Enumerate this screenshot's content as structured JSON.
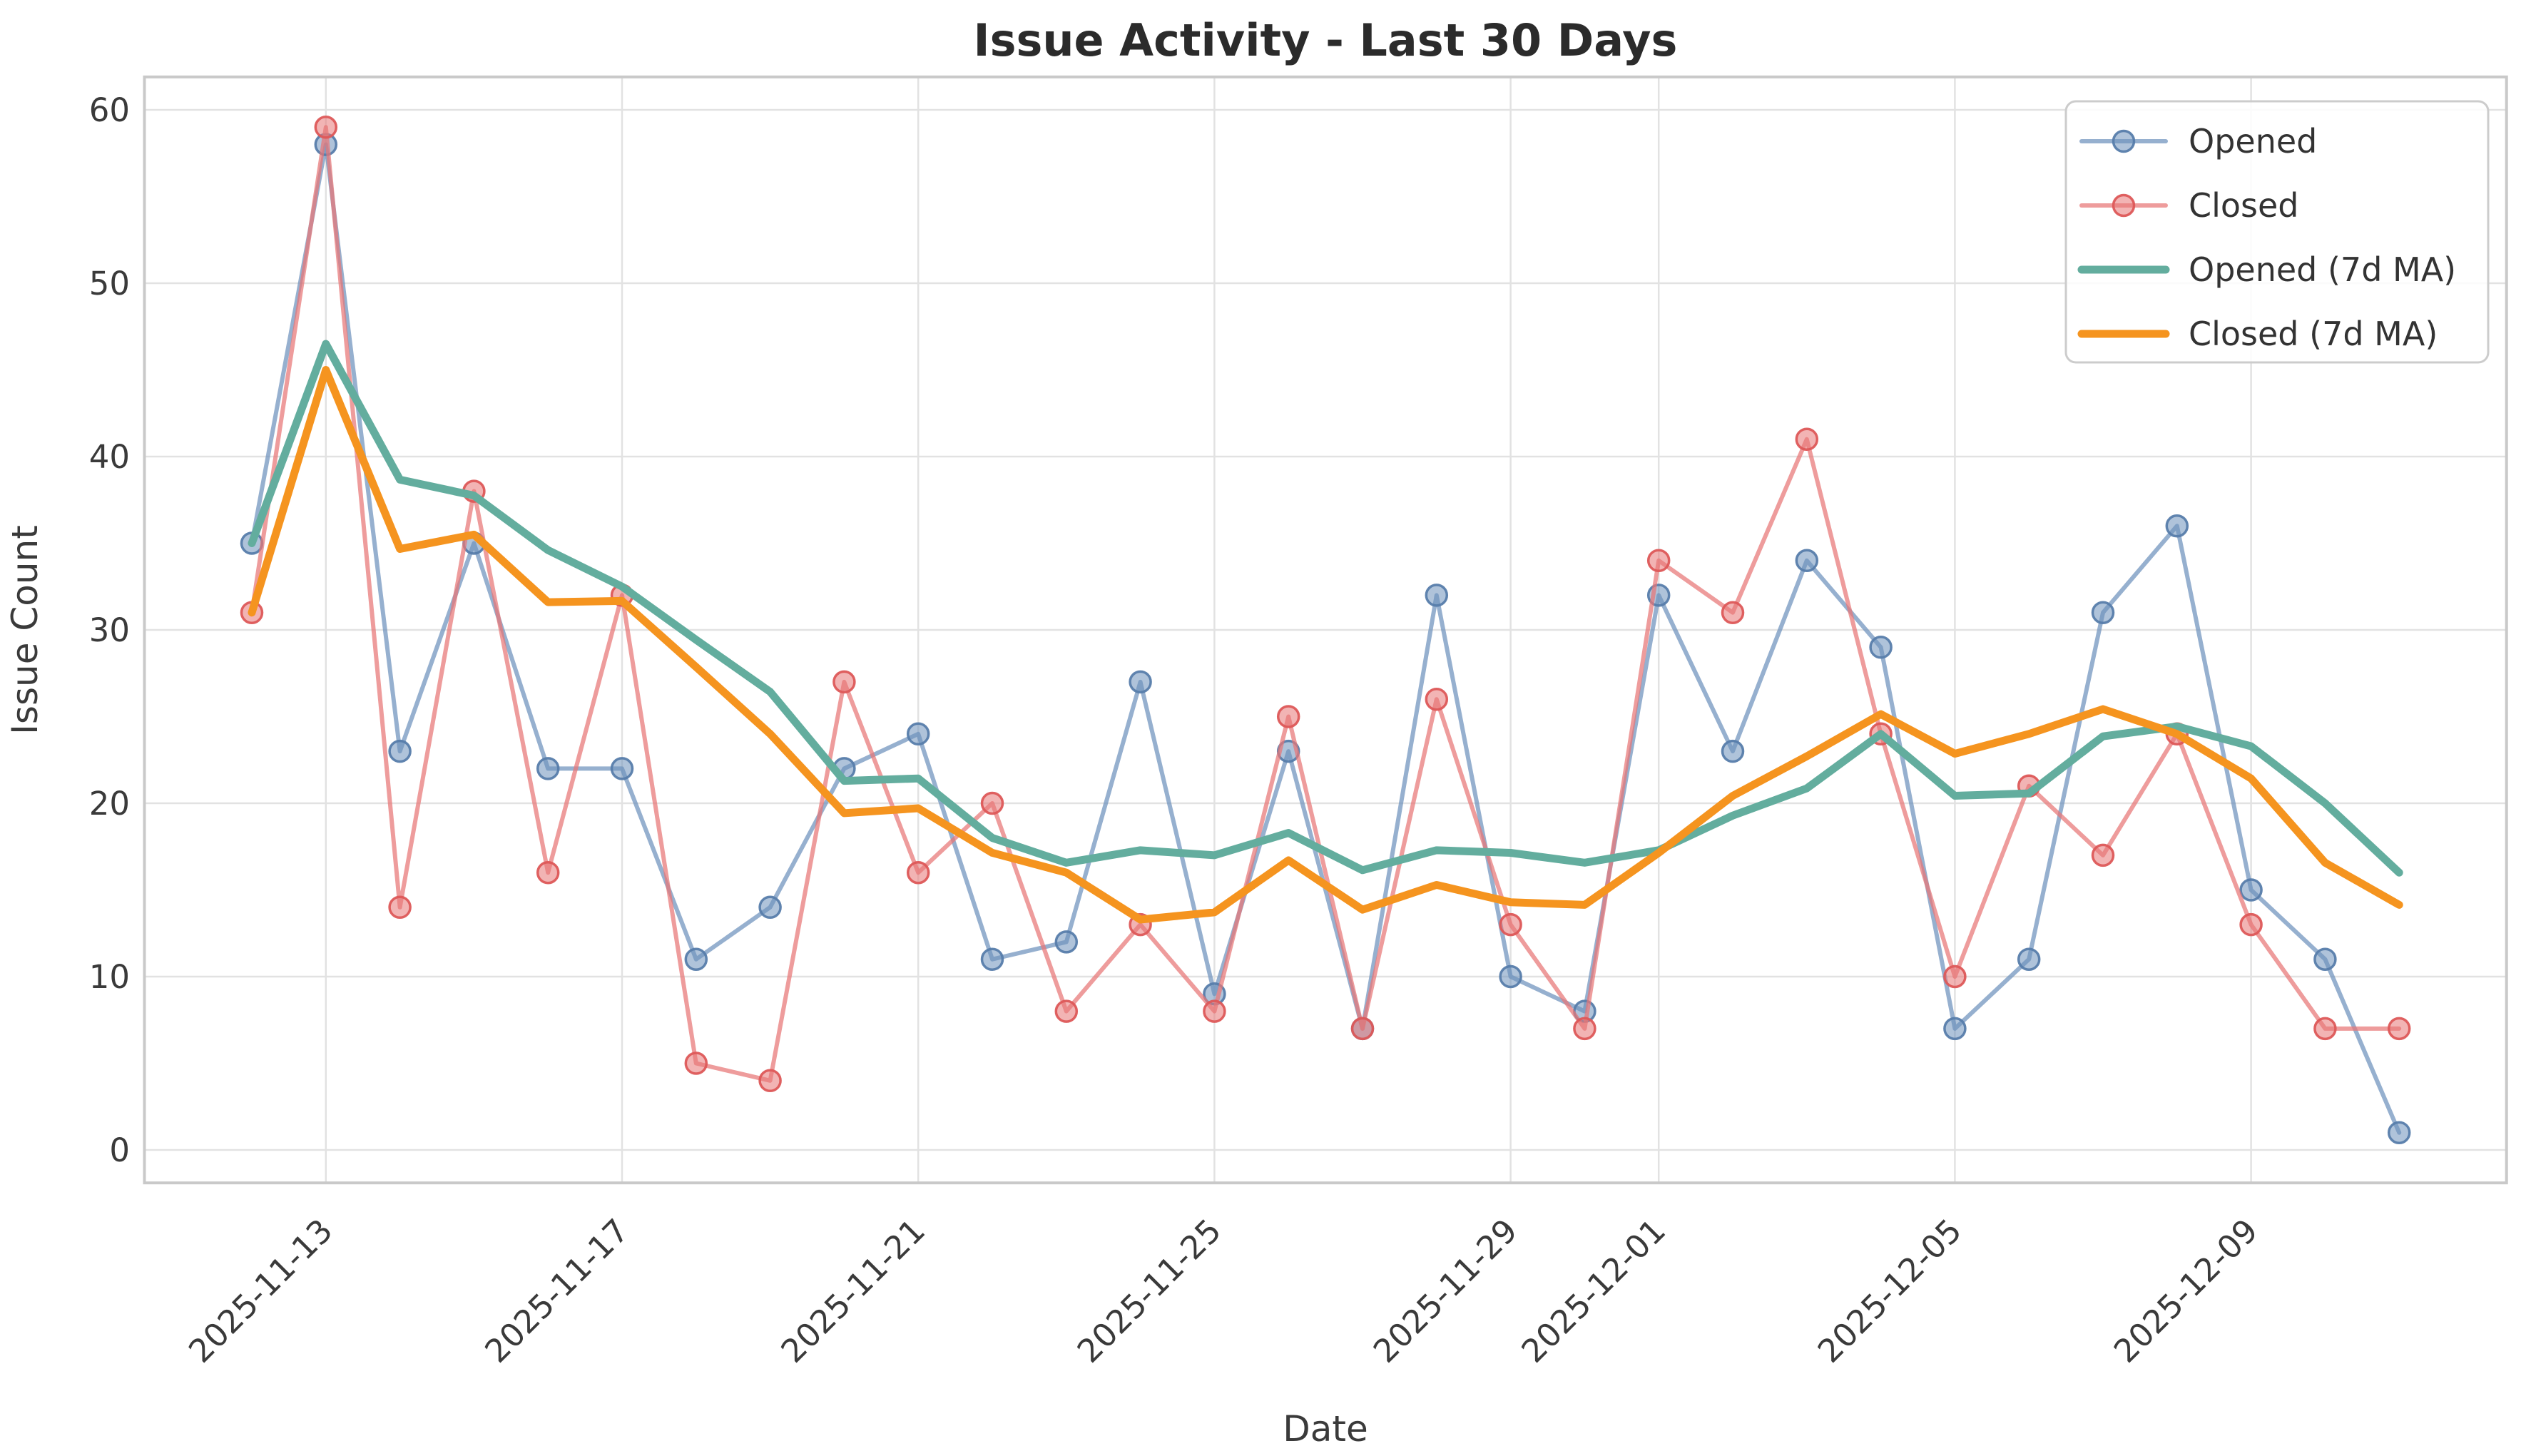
{
  "title": "Issue Activity - Last 30 Days",
  "chart_data": {
    "type": "line",
    "title": "Issue Activity - Last 30 Days",
    "xlabel": "Date",
    "ylabel": "Issue Count",
    "grid": true,
    "legend_position": "upper right",
    "x": [
      "2025-11-12",
      "2025-11-13",
      "2025-11-14",
      "2025-11-15",
      "2025-11-16",
      "2025-11-17",
      "2025-11-18",
      "2025-11-19",
      "2025-11-20",
      "2025-11-21",
      "2025-11-22",
      "2025-11-23",
      "2025-11-24",
      "2025-11-25",
      "2025-11-26",
      "2025-11-27",
      "2025-11-28",
      "2025-11-29",
      "2025-11-30",
      "2025-12-01",
      "2025-12-02",
      "2025-12-03",
      "2025-12-04",
      "2025-12-05",
      "2025-12-06",
      "2025-12-07",
      "2025-12-08",
      "2025-12-09",
      "2025-12-10",
      "2025-12-11"
    ],
    "series": [
      {
        "name": "Opened",
        "type": "line-markers",
        "color": "#6d92bc",
        "line_rgba": "rgba(109,146,188,0.72)",
        "marker_fill": "rgba(109,146,188,0.55)",
        "marker_edge": "rgba(87,125,171,0.95)",
        "values": [
          35,
          58,
          23,
          35,
          22,
          22,
          11,
          14,
          22,
          24,
          11,
          12,
          27,
          9,
          23,
          7,
          32,
          10,
          8,
          32,
          23,
          34,
          29,
          7,
          11,
          31,
          36,
          15,
          11,
          1
        ]
      },
      {
        "name": "Closed",
        "type": "line-markers",
        "color": "#e77c7c",
        "line_rgba": "rgba(231,118,118,0.72)",
        "marker_fill": "rgba(231,118,118,0.55)",
        "marker_edge": "rgba(221,88,88,0.95)",
        "values": [
          31,
          59,
          14,
          38,
          16,
          32,
          5,
          4,
          27,
          16,
          20,
          8,
          13,
          8,
          25,
          7,
          26,
          13,
          7,
          34,
          31,
          41,
          24,
          10,
          21,
          17,
          24,
          13,
          7,
          7
        ]
      },
      {
        "name": "Opened (7d MA)",
        "type": "line",
        "color": "#63ad9e",
        "line_rgba": "#63ad9e",
        "values": [
          35,
          46.5,
          38.67,
          37.75,
          34.6,
          32.5,
          29.43,
          26.43,
          21.29,
          21.43,
          18,
          16.57,
          17.29,
          17,
          18.29,
          16.14,
          17.29,
          17.14,
          16.57,
          17.29,
          19.29,
          20.86,
          24,
          20.43,
          20.57,
          23.86,
          24.43,
          23.29,
          20,
          16
        ]
      },
      {
        "name": "Closed (7d MA)",
        "type": "line",
        "color": "#f5941f",
        "line_rgba": "#f5941f",
        "values": [
          31,
          45,
          34.67,
          35.5,
          31.6,
          31.67,
          27.86,
          24,
          19.43,
          19.71,
          17.14,
          16,
          13.29,
          13.71,
          16.71,
          13.86,
          15.29,
          14.29,
          14.14,
          17.14,
          20.43,
          22.71,
          25.14,
          22.86,
          24,
          25.43,
          24,
          21.43,
          16.57,
          14.14
        ]
      }
    ],
    "yticks": [
      0,
      10,
      20,
      30,
      40,
      50,
      60
    ],
    "ylim": [
      -1.9,
      61.9
    ],
    "xlim_days": [
      -1.45,
      30.45
    ],
    "xtick_indices": [
      1,
      5,
      9,
      13,
      17,
      19,
      23,
      27
    ],
    "xtick_labels": [
      "2025-11-13",
      "2025-11-17",
      "2025-11-21",
      "2025-11-25",
      "2025-11-29",
      "2025-12-01",
      "2025-12-05",
      "2025-12-09"
    ],
    "colors": {
      "grid": "#e2e2e2",
      "spine": "#c9c9c9",
      "text": "#262626",
      "legend_border": "#cccccc",
      "legend_bg": "rgba(255,255,255,0.85)"
    }
  }
}
